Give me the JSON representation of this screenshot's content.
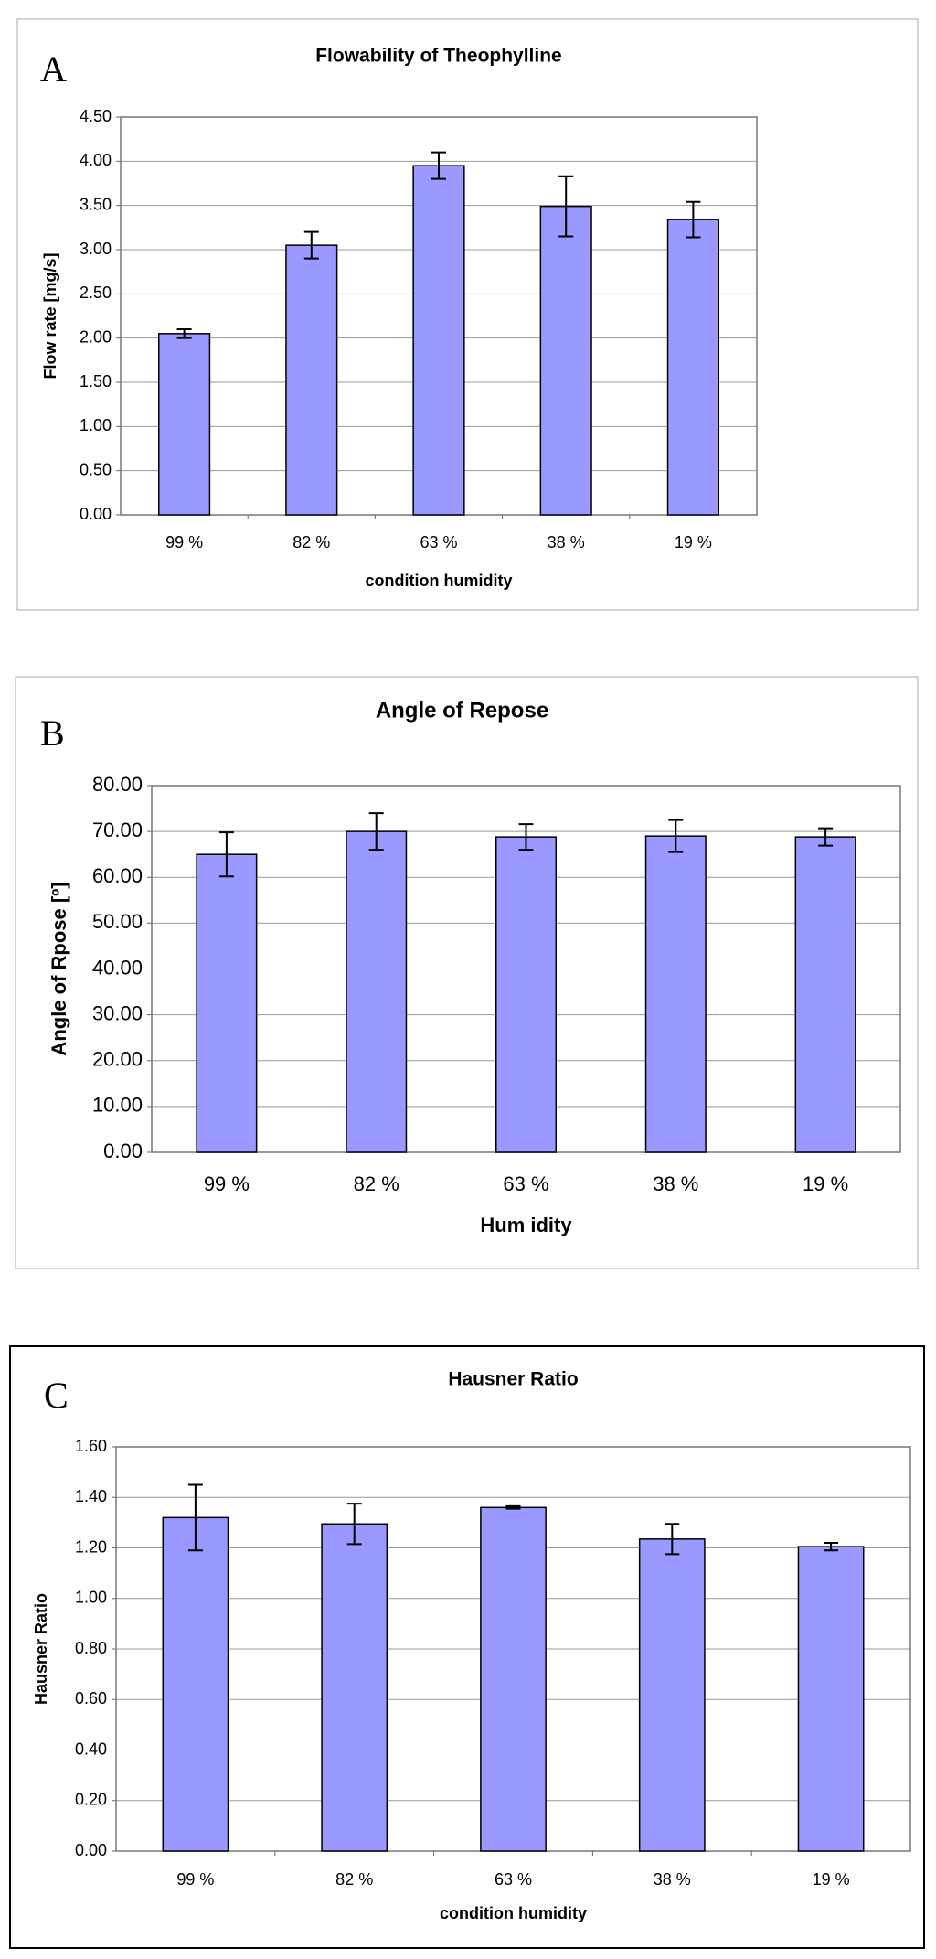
{
  "chart_data": [
    {
      "type": "bar",
      "panel_label": "A",
      "title": "Flowability of Theophylline",
      "x_label": "condition humidity",
      "y_label": "Flow rate [mg/s]",
      "categories": [
        "99 %",
        "82 %",
        "63 %",
        "38 %",
        "19 %"
      ],
      "values": [
        2.05,
        3.05,
        3.95,
        3.49,
        3.34
      ],
      "errors": [
        0.05,
        0.15,
        0.15,
        0.34,
        0.2
      ],
      "color": "#9999ff",
      "grid": true,
      "ylim": [
        0,
        4.5
      ],
      "yticks": [
        {
          "value": 0,
          "label": "0.00"
        },
        {
          "value": 0.5,
          "label": "0.50"
        },
        {
          "value": 1,
          "label": "1.00"
        },
        {
          "value": 1.5,
          "label": "1.50"
        },
        {
          "value": 2,
          "label": "2.00"
        },
        {
          "value": 2.5,
          "label": "2.50"
        },
        {
          "value": 3,
          "label": "3.00"
        },
        {
          "value": 3.5,
          "label": "3.50"
        },
        {
          "value": 4,
          "label": "4.00"
        },
        {
          "value": 4.5,
          "label": "4.50"
        }
      ]
    },
    {
      "type": "bar",
      "panel_label": "B",
      "title": "Angle of Repose",
      "x_label": "Hum idity",
      "y_label": "Angle of Rpose [º]",
      "categories": [
        "99 %",
        "82 %",
        "63 %",
        "38 %",
        "19 %"
      ],
      "values": [
        65,
        70,
        68.8,
        69,
        68.8
      ],
      "errors": [
        4.8,
        4,
        2.8,
        3.5,
        1.9
      ],
      "color": "#9999ff",
      "grid": true,
      "ylim": [
        0,
        80
      ],
      "yticks": [
        {
          "value": 0,
          "label": "0.00"
        },
        {
          "value": 10,
          "label": "10.00"
        },
        {
          "value": 20,
          "label": "20.00"
        },
        {
          "value": 30,
          "label": "30.00"
        },
        {
          "value": 40,
          "label": "40.00"
        },
        {
          "value": 50,
          "label": "50.00"
        },
        {
          "value": 60,
          "label": "60.00"
        },
        {
          "value": 70,
          "label": "70.00"
        },
        {
          "value": 80,
          "label": "80.00"
        }
      ]
    },
    {
      "type": "bar",
      "panel_label": "C",
      "title": "Hausner Ratio",
      "x_label": "condition humidity",
      "y_label": "Hausner Ratio",
      "categories": [
        "99 %",
        "82 %",
        "63 %",
        "38 %",
        "19 %"
      ],
      "values": [
        1.32,
        1.295,
        1.36,
        1.235,
        1.205
      ],
      "errors": [
        0.13,
        0.08,
        0.005,
        0.06,
        0.015
      ],
      "color": "#9999ff",
      "grid": true,
      "ylim": [
        0,
        1.6
      ],
      "yticks": [
        {
          "value": 0,
          "label": "0.00"
        },
        {
          "value": 0.2,
          "label": "0.20"
        },
        {
          "value": 0.4,
          "label": "0.40"
        },
        {
          "value": 0.6,
          "label": "0.60"
        },
        {
          "value": 0.8,
          "label": "0.80"
        },
        {
          "value": 1,
          "label": "1.00"
        },
        {
          "value": 1.2,
          "label": "1.20"
        },
        {
          "value": 1.4,
          "label": "1.40"
        },
        {
          "value": 1.6,
          "label": "1.60"
        }
      ]
    }
  ]
}
